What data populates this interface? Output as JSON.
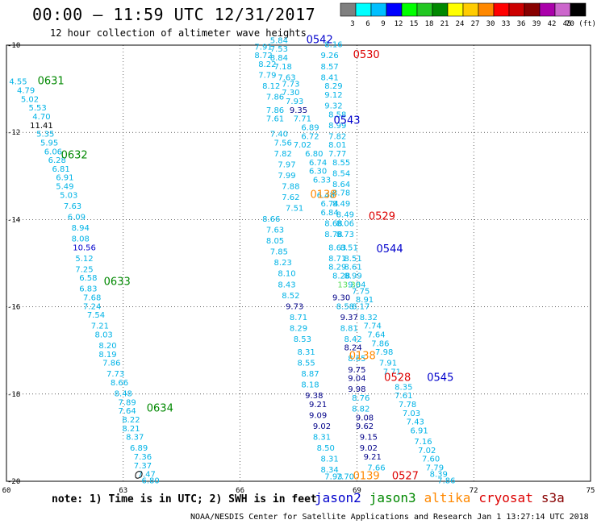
{
  "header": {
    "title": "00:00 — 11:59 UTC 12/31/2017",
    "subtitle": "12 hour collection of altimeter wave heights"
  },
  "colorbar": {
    "labels": [
      "3",
      "6",
      "9",
      "12",
      "15",
      "18",
      "21",
      "24",
      "27",
      "30",
      "33",
      "36",
      "39",
      "42",
      "45",
      "70 (ft)"
    ],
    "colors": [
      "#7f7f7f",
      "#00ffff",
      "#00bfff",
      "#0000ff",
      "#00ff00",
      "#22c722",
      "#008800",
      "#ffff00",
      "#ffcc00",
      "#ff8800",
      "#ff0000",
      "#cc0000",
      "#880000",
      "#aa00aa",
      "#cc66cc",
      "#000000"
    ]
  },
  "chart_data": {
    "type": "scatter",
    "xlim": [
      60,
      75
    ],
    "ylim": [
      -20,
      -10
    ],
    "x_ticks": [
      "60",
      "63",
      "66",
      "69",
      "72",
      "75"
    ],
    "y_ticks": [
      "-10",
      "-12",
      "-14",
      "-16",
      "-18",
      "-20"
    ],
    "grid": true,
    "track_labels": [
      {
        "text": "0542",
        "x": 67.7,
        "y": -9.95,
        "color": "#0000cc"
      },
      {
        "text": "0530",
        "x": 68.9,
        "y": -10.3,
        "color": "#dd0000"
      },
      {
        "text": "0631",
        "x": 60.8,
        "y": -10.9,
        "color": "#008800"
      },
      {
        "text": "0543",
        "x": 68.4,
        "y": -11.8,
        "color": "#0000cc"
      },
      {
        "text": "0632",
        "x": 61.4,
        "y": -12.6,
        "color": "#008800"
      },
      {
        "text": "0138",
        "x": 67.8,
        "y": -13.5,
        "color": "#ff8800"
      },
      {
        "text": "0529",
        "x": 69.3,
        "y": -14.0,
        "color": "#dd0000"
      },
      {
        "text": "0544",
        "x": 69.5,
        "y": -14.75,
        "color": "#0000cc"
      },
      {
        "text": "0633",
        "x": 62.5,
        "y": -15.5,
        "color": "#008800"
      },
      {
        "text": "0138",
        "x": 68.8,
        "y": -17.2,
        "color": "#ff8800"
      },
      {
        "text": "0528",
        "x": 69.7,
        "y": -17.7,
        "color": "#dd0000"
      },
      {
        "text": "0545",
        "x": 70.8,
        "y": -17.7,
        "color": "#0000cc"
      },
      {
        "text": "0634",
        "x": 63.6,
        "y": -18.4,
        "color": "#008800"
      },
      {
        "text": "0527",
        "x": 69.9,
        "y": -19.95,
        "color": "#dd0000"
      },
      {
        "text": "0139",
        "x": 68.9,
        "y": -19.95,
        "color": "#ff8800"
      }
    ],
    "points": [
      {
        "x": 67.0,
        "y": -9.95,
        "v": "5.84"
      },
      {
        "x": 66.6,
        "y": -10.1,
        "v": "7.91"
      },
      {
        "x": 67.0,
        "y": -10.15,
        "v": "7.53"
      },
      {
        "x": 68.4,
        "y": -10.05,
        "v": "8.16"
      },
      {
        "x": 66.6,
        "y": -10.3,
        "v": "8.72"
      },
      {
        "x": 67.0,
        "y": -10.35,
        "v": "8.84"
      },
      {
        "x": 68.3,
        "y": -10.3,
        "v": "9.26"
      },
      {
        "x": 66.7,
        "y": -10.5,
        "v": "8.22"
      },
      {
        "x": 67.1,
        "y": -10.55,
        "v": "7.18"
      },
      {
        "x": 68.3,
        "y": -10.55,
        "v": "8.57"
      },
      {
        "x": 66.7,
        "y": -10.75,
        "v": "7.79"
      },
      {
        "x": 67.2,
        "y": -10.8,
        "v": "7.63"
      },
      {
        "x": 68.3,
        "y": -10.8,
        "v": "8.41"
      },
      {
        "x": 66.8,
        "y": -11.0,
        "v": "8.12"
      },
      {
        "x": 67.3,
        "y": -10.95,
        "v": "7.73"
      },
      {
        "x": 68.4,
        "y": -11.0,
        "v": "8.29"
      },
      {
        "x": 66.9,
        "y": -11.25,
        "v": "7.86"
      },
      {
        "x": 67.3,
        "y": -11.15,
        "v": "7.30"
      },
      {
        "x": 68.4,
        "y": -11.2,
        "v": "9.12"
      },
      {
        "x": 67.4,
        "y": -11.35,
        "v": "7.93"
      },
      {
        "x": 68.4,
        "y": -11.45,
        "v": "9.32"
      },
      {
        "x": 66.9,
        "y": -11.55,
        "v": "7.86"
      },
      {
        "x": 67.5,
        "y": -11.55,
        "v": "9.35",
        "c": "#000088"
      },
      {
        "x": 68.5,
        "y": -11.65,
        "v": "8.58"
      },
      {
        "x": 66.9,
        "y": -11.75,
        "v": "7.61"
      },
      {
        "x": 67.6,
        "y": -11.75,
        "v": "7.71"
      },
      {
        "x": 68.5,
        "y": -11.9,
        "v": "8.99"
      },
      {
        "x": 67.8,
        "y": -11.95,
        "v": "6.89"
      },
      {
        "x": 67.0,
        "y": -12.1,
        "v": "7.40"
      },
      {
        "x": 67.8,
        "y": -12.15,
        "v": "6.72"
      },
      {
        "x": 68.5,
        "y": -12.15,
        "v": "7.82"
      },
      {
        "x": 67.1,
        "y": -12.3,
        "v": "7.56"
      },
      {
        "x": 67.6,
        "y": -12.35,
        "v": "7.02"
      },
      {
        "x": 68.5,
        "y": -12.35,
        "v": "8.01"
      },
      {
        "x": 67.1,
        "y": -12.55,
        "v": "7.82"
      },
      {
        "x": 67.9,
        "y": -12.55,
        "v": "6.80"
      },
      {
        "x": 68.5,
        "y": -12.55,
        "v": "7.77"
      },
      {
        "x": 67.2,
        "y": -12.8,
        "v": "7.97"
      },
      {
        "x": 68.0,
        "y": -12.75,
        "v": "6.74"
      },
      {
        "x": 68.6,
        "y": -12.75,
        "v": "8.55"
      },
      {
        "x": 67.2,
        "y": -13.05,
        "v": "7.99"
      },
      {
        "x": 68.0,
        "y": -12.95,
        "v": "6.30"
      },
      {
        "x": 68.6,
        "y": -13.0,
        "v": "8.54"
      },
      {
        "x": 68.1,
        "y": -13.15,
        "v": "6.33"
      },
      {
        "x": 67.3,
        "y": -13.3,
        "v": "7.88"
      },
      {
        "x": 68.6,
        "y": -13.25,
        "v": "8.64"
      },
      {
        "x": 67.3,
        "y": -13.55,
        "v": "7.62"
      },
      {
        "x": 68.2,
        "y": -13.5,
        "v": "6.48"
      },
      {
        "x": 68.6,
        "y": -13.45,
        "v": "8.78"
      },
      {
        "x": 67.4,
        "y": -13.8,
        "v": "7.51"
      },
      {
        "x": 68.3,
        "y": -13.7,
        "v": "6.74"
      },
      {
        "x": 68.6,
        "y": -13.7,
        "v": "8.49"
      },
      {
        "x": 66.8,
        "y": -14.05,
        "v": "8.66"
      },
      {
        "x": 68.3,
        "y": -13.9,
        "v": "6.84"
      },
      {
        "x": 68.7,
        "y": -13.95,
        "v": "8.49"
      },
      {
        "x": 66.9,
        "y": -14.3,
        "v": "7.63"
      },
      {
        "x": 68.4,
        "y": -14.15,
        "v": "8.68"
      },
      {
        "x": 68.7,
        "y": -14.15,
        "v": "8.06"
      },
      {
        "x": 66.9,
        "y": -14.55,
        "v": "8.05"
      },
      {
        "x": 68.4,
        "y": -14.4,
        "v": "8.78"
      },
      {
        "x": 68.7,
        "y": -14.4,
        "v": "8.73"
      },
      {
        "x": 67.0,
        "y": -14.8,
        "v": "7.85"
      },
      {
        "x": 68.5,
        "y": -14.7,
        "v": "8.63"
      },
      {
        "x": 68.8,
        "y": -14.7,
        "v": "8.51"
      },
      {
        "x": 67.1,
        "y": -15.05,
        "v": "8.23"
      },
      {
        "x": 68.5,
        "y": -14.95,
        "v": "8.71"
      },
      {
        "x": 68.9,
        "y": -14.95,
        "v": "8.51"
      },
      {
        "x": 67.2,
        "y": -15.3,
        "v": "8.10"
      },
      {
        "x": 68.5,
        "y": -15.15,
        "v": "8.29"
      },
      {
        "x": 68.9,
        "y": -15.15,
        "v": "8.61"
      },
      {
        "x": 68.6,
        "y": -15.35,
        "v": "8.28"
      },
      {
        "x": 68.9,
        "y": -15.35,
        "v": "8.99"
      },
      {
        "x": 67.2,
        "y": -15.55,
        "v": "8.43"
      },
      {
        "x": 68.8,
        "y": -15.55,
        "v": "13.36",
        "c": "#55dd55"
      },
      {
        "x": 69.0,
        "y": -15.55,
        "v": "9.04"
      },
      {
        "x": 69.1,
        "y": -15.7,
        "v": "7.75"
      },
      {
        "x": 67.3,
        "y": -15.8,
        "v": "8.52"
      },
      {
        "x": 68.6,
        "y": -15.85,
        "v": "9.30",
        "c": "#000088"
      },
      {
        "x": 69.2,
        "y": -15.9,
        "v": "8.91"
      },
      {
        "x": 67.4,
        "y": -16.05,
        "v": "9.73",
        "c": "#000088"
      },
      {
        "x": 68.7,
        "y": -16.05,
        "v": "8.58"
      },
      {
        "x": 69.1,
        "y": -16.05,
        "v": "8.17"
      },
      {
        "x": 67.5,
        "y": -16.3,
        "v": "8.71"
      },
      {
        "x": 68.8,
        "y": -16.3,
        "v": "9.37",
        "c": "#000088"
      },
      {
        "x": 69.3,
        "y": -16.3,
        "v": "8.32"
      },
      {
        "x": 67.5,
        "y": -16.55,
        "v": "8.29"
      },
      {
        "x": 68.8,
        "y": -16.55,
        "v": "8.81"
      },
      {
        "x": 69.4,
        "y": -16.5,
        "v": "7.74"
      },
      {
        "x": 67.6,
        "y": -16.8,
        "v": "8.53"
      },
      {
        "x": 68.9,
        "y": -16.8,
        "v": "8.42"
      },
      {
        "x": 69.5,
        "y": -16.7,
        "v": "7.64"
      },
      {
        "x": 68.9,
        "y": -17.0,
        "v": "8.24",
        "c": "#000088"
      },
      {
        "x": 69.6,
        "y": -16.9,
        "v": "7.86"
      },
      {
        "x": 67.7,
        "y": -17.1,
        "v": "8.31"
      },
      {
        "x": 69.7,
        "y": -17.1,
        "v": "7.98"
      },
      {
        "x": 67.7,
        "y": -17.35,
        "v": "8.55"
      },
      {
        "x": 69.0,
        "y": -17.25,
        "v": "8.65"
      },
      {
        "x": 69.8,
        "y": -17.35,
        "v": "7.91"
      },
      {
        "x": 67.8,
        "y": -17.6,
        "v": "8.87"
      },
      {
        "x": 69.0,
        "y": -17.5,
        "v": "9.75",
        "c": "#000088"
      },
      {
        "x": 69.9,
        "y": -17.55,
        "v": "7.71"
      },
      {
        "x": 67.8,
        "y": -17.85,
        "v": "8.18"
      },
      {
        "x": 69.0,
        "y": -17.7,
        "v": "9.04",
        "c": "#000088"
      },
      {
        "x": 70.2,
        "y": -17.9,
        "v": "8.35"
      },
      {
        "x": 67.9,
        "y": -18.1,
        "v": "9.38",
        "c": "#000088"
      },
      {
        "x": 69.0,
        "y": -17.95,
        "v": "9.98",
        "c": "#000088"
      },
      {
        "x": 70.2,
        "y": -18.1,
        "v": "7.61"
      },
      {
        "x": 68.0,
        "y": -18.3,
        "v": "9.21",
        "c": "#000088"
      },
      {
        "x": 69.1,
        "y": -18.15,
        "v": "8.76"
      },
      {
        "x": 70.3,
        "y": -18.3,
        "v": "7.78"
      },
      {
        "x": 69.1,
        "y": -18.4,
        "v": "8.82"
      },
      {
        "x": 70.4,
        "y": -18.5,
        "v": "7.03"
      },
      {
        "x": 68.0,
        "y": -18.55,
        "v": "9.09",
        "c": "#000088"
      },
      {
        "x": 69.2,
        "y": -18.6,
        "v": "9.08",
        "c": "#000088"
      },
      {
        "x": 70.5,
        "y": -18.7,
        "v": "7.43"
      },
      {
        "x": 68.1,
        "y": -18.8,
        "v": "9.02",
        "c": "#000088"
      },
      {
        "x": 69.2,
        "y": -18.8,
        "v": "9.62",
        "c": "#000088"
      },
      {
        "x": 70.6,
        "y": -18.9,
        "v": "6.91"
      },
      {
        "x": 68.1,
        "y": -19.05,
        "v": "8.31"
      },
      {
        "x": 69.3,
        "y": -19.05,
        "v": "9.15",
        "c": "#000088"
      },
      {
        "x": 70.7,
        "y": -19.15,
        "v": "7.16"
      },
      {
        "x": 68.2,
        "y": -19.3,
        "v": "8.50"
      },
      {
        "x": 69.3,
        "y": -19.3,
        "v": "9.02",
        "c": "#000088"
      },
      {
        "x": 70.8,
        "y": -19.35,
        "v": "7.02"
      },
      {
        "x": 68.3,
        "y": -19.55,
        "v": "8.31"
      },
      {
        "x": 69.4,
        "y": -19.5,
        "v": "9.21",
        "c": "#000088"
      },
      {
        "x": 70.9,
        "y": -19.55,
        "v": "7.60"
      },
      {
        "x": 68.3,
        "y": -19.8,
        "v": "8.34"
      },
      {
        "x": 69.5,
        "y": -19.75,
        "v": "7.66"
      },
      {
        "x": 71.0,
        "y": -19.75,
        "v": "7.79"
      },
      {
        "x": 68.4,
        "y": -19.95,
        "v": "7.93"
      },
      {
        "x": 68.7,
        "y": -19.95,
        "v": "7.70"
      },
      {
        "x": 71.1,
        "y": -19.9,
        "v": "8.39"
      },
      {
        "x": 71.3,
        "y": -20.05,
        "v": "7.86"
      },
      {
        "x": 60.3,
        "y": -10.9,
        "v": "4.55"
      },
      {
        "x": 60.5,
        "y": -11.1,
        "v": "4.79"
      },
      {
        "x": 60.6,
        "y": -11.3,
        "v": "5.02"
      },
      {
        "x": 60.8,
        "y": -11.5,
        "v": "5.53"
      },
      {
        "x": 60.9,
        "y": -11.7,
        "v": "4.70"
      },
      {
        "x": 60.9,
        "y": -11.9,
        "v": "11.41",
        "c": "#000000"
      },
      {
        "x": 61.0,
        "y": -12.1,
        "v": "5.35"
      },
      {
        "x": 61.1,
        "y": -12.3,
        "v": "5.95"
      },
      {
        "x": 61.2,
        "y": -12.5,
        "v": "6.06"
      },
      {
        "x": 61.3,
        "y": -12.7,
        "v": "6.28"
      },
      {
        "x": 61.4,
        "y": -12.9,
        "v": "6.81"
      },
      {
        "x": 61.5,
        "y": -13.1,
        "v": "6.91"
      },
      {
        "x": 61.5,
        "y": -13.3,
        "v": "5.49"
      },
      {
        "x": 61.6,
        "y": -13.5,
        "v": "5.03"
      },
      {
        "x": 61.7,
        "y": -13.75,
        "v": "7.63"
      },
      {
        "x": 61.8,
        "y": -14.0,
        "v": "6.09"
      },
      {
        "x": 61.9,
        "y": -14.25,
        "v": "8.94"
      },
      {
        "x": 61.9,
        "y": -14.5,
        "v": "8.08"
      },
      {
        "x": 62.0,
        "y": -14.7,
        "v": "10.56",
        "c": "#0000cc"
      },
      {
        "x": 62.0,
        "y": -14.95,
        "v": "5.12"
      },
      {
        "x": 62.0,
        "y": -15.2,
        "v": "7.25"
      },
      {
        "x": 62.1,
        "y": -15.4,
        "v": "6.58"
      },
      {
        "x": 62.1,
        "y": -15.65,
        "v": "6.83"
      },
      {
        "x": 62.2,
        "y": -15.85,
        "v": "7.68"
      },
      {
        "x": 62.2,
        "y": -16.05,
        "v": "7.24"
      },
      {
        "x": 62.3,
        "y": -16.25,
        "v": "7.54"
      },
      {
        "x": 62.4,
        "y": -16.5,
        "v": "7.21"
      },
      {
        "x": 62.5,
        "y": -16.7,
        "v": "8.03"
      },
      {
        "x": 62.6,
        "y": -16.95,
        "v": "8.20"
      },
      {
        "x": 62.6,
        "y": -17.15,
        "v": "8.19"
      },
      {
        "x": 62.7,
        "y": -17.35,
        "v": "7.86"
      },
      {
        "x": 62.8,
        "y": -17.6,
        "v": "7.73"
      },
      {
        "x": 62.9,
        "y": -17.8,
        "v": "8.66"
      },
      {
        "x": 63.0,
        "y": -18.05,
        "v": "8.48"
      },
      {
        "x": 63.1,
        "y": -18.25,
        "v": "7.89"
      },
      {
        "x": 63.1,
        "y": -18.45,
        "v": "7.64"
      },
      {
        "x": 63.2,
        "y": -18.65,
        "v": "8.22"
      },
      {
        "x": 63.2,
        "y": -18.85,
        "v": "8.21"
      },
      {
        "x": 63.3,
        "y": -19.05,
        "v": "8.37"
      },
      {
        "x": 63.4,
        "y": -19.3,
        "v": "6.89"
      },
      {
        "x": 63.5,
        "y": -19.5,
        "v": "7.36"
      },
      {
        "x": 63.5,
        "y": -19.7,
        "v": "7.37"
      },
      {
        "x": 63.6,
        "y": -19.9,
        "v": "7.47"
      },
      {
        "x": 63.7,
        "y": -20.05,
        "v": "6.80"
      }
    ],
    "islet": {
      "x": 63.4,
      "y": -19.85
    }
  },
  "legend": {
    "note": "note: 1) Time is in UTC; 2) SWH is in feet",
    "satellites": [
      {
        "name": "jason2",
        "color": "#0000cc"
      },
      {
        "name": "jason3",
        "color": "#008800"
      },
      {
        "name": "altika",
        "color": "#ff8800"
      },
      {
        "name": "cryosat",
        "color": "#dd0000"
      },
      {
        "name": "s3a",
        "color": "#880000"
      }
    ]
  },
  "footer": "NOAA/NESDIS Center for Satellite Applications and Research    Jan  1 13:27:14 UTC 2018"
}
